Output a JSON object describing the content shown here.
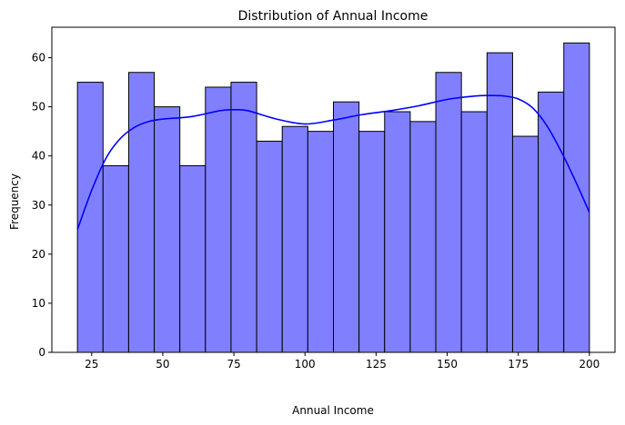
{
  "chart_data": {
    "type": "bar",
    "title": "Distribution of Annual Income",
    "xlabel": "Annual Income",
    "ylabel": "Frequency",
    "xlim": [
      11,
      209
    ],
    "ylim": [
      0,
      66.2
    ],
    "x_ticks": [
      25,
      50,
      75,
      100,
      125,
      150,
      175,
      200
    ],
    "y_ticks": [
      0,
      10,
      20,
      30,
      40,
      50,
      60
    ],
    "grid": false,
    "legend": "none",
    "bin_edges": [
      20,
      29,
      38,
      47,
      56,
      65,
      74,
      83,
      92,
      101,
      110,
      119,
      128,
      137,
      146,
      155,
      164,
      173,
      182,
      191,
      200
    ],
    "values": [
      55,
      38,
      57,
      50,
      38,
      54,
      55,
      43,
      46,
      45,
      51,
      45,
      49,
      47,
      57,
      49,
      61,
      44,
      53,
      63
    ],
    "kde": {
      "x": [
        20,
        25,
        30,
        35,
        40,
        45,
        50,
        60,
        70,
        75,
        80,
        90,
        100,
        110,
        120,
        130,
        140,
        150,
        160,
        165,
        170,
        175,
        180,
        185,
        190,
        195,
        200
      ],
      "y": [
        25,
        33,
        39.5,
        43.5,
        45.8,
        47,
        47.5,
        48,
        49.2,
        49.4,
        49.2,
        47.5,
        46.5,
        47.3,
        48.4,
        49.2,
        50.2,
        51.5,
        52.2,
        52.3,
        52.2,
        51.6,
        49.8,
        46.2,
        41,
        35,
        28.5
      ]
    },
    "colors": {
      "bar_fill": "#8080ff",
      "bar_edge": "#000000",
      "kde_line": "#0000ff",
      "axis": "#000000"
    }
  }
}
